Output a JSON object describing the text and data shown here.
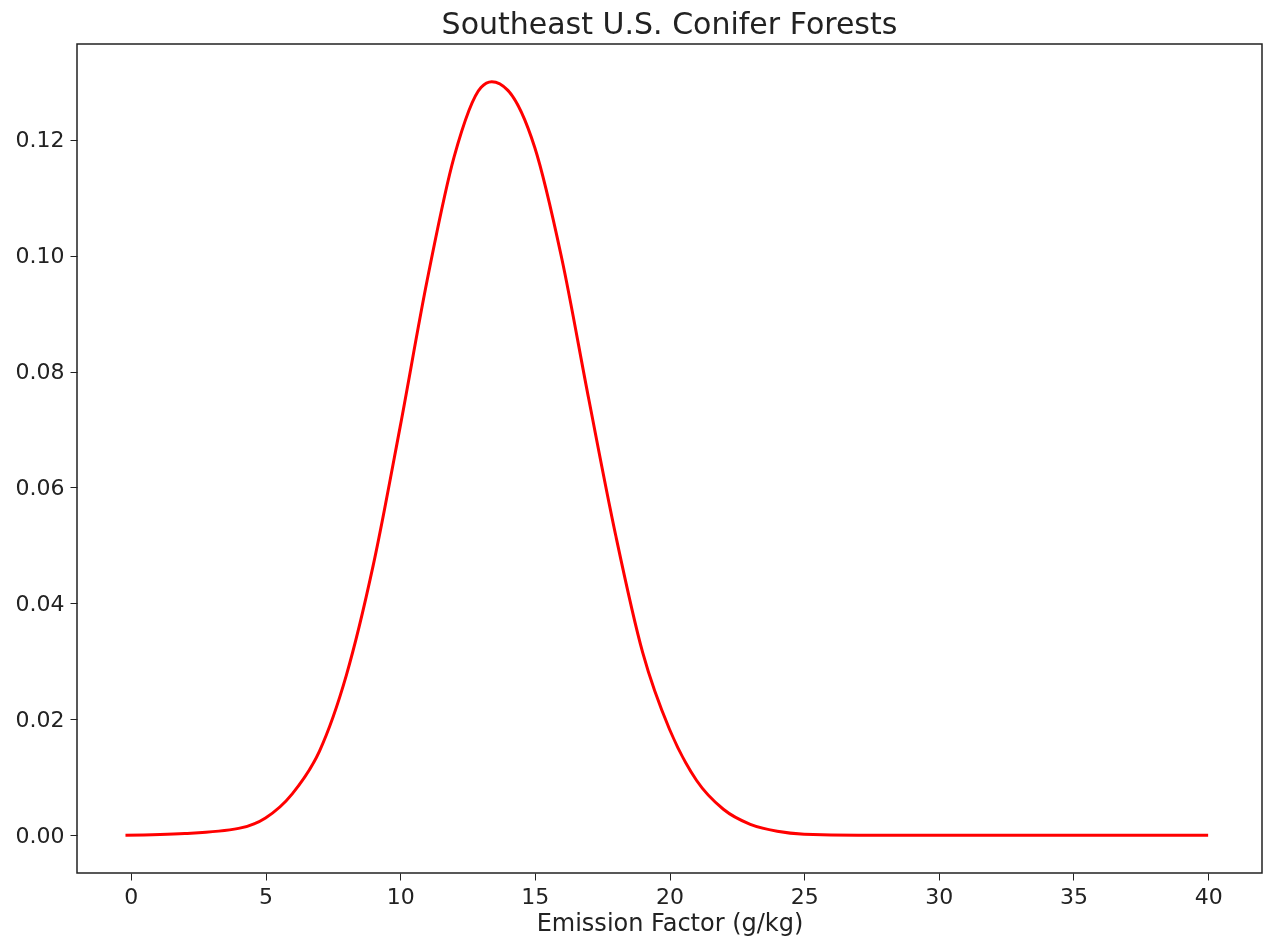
{
  "chart_data": {
    "type": "line",
    "title": "Southeast U.S. Conifer Forests",
    "xlabel": "Emission Factor (g/kg)",
    "x": [
      -0.2,
      2,
      4,
      5,
      6,
      7,
      8,
      9,
      10,
      11,
      12,
      13,
      13.4,
      14,
      15,
      16,
      17,
      18,
      19,
      20,
      21,
      22,
      23,
      24,
      25,
      27,
      30,
      35,
      40
    ],
    "series": [
      {
        "color": "#ff0000",
        "values": [
          0,
          0.0003,
          0.0012,
          0.003,
          0.0072,
          0.0145,
          0.0276,
          0.0466,
          0.0705,
          0.0957,
          0.117,
          0.129,
          0.13,
          0.1285,
          0.1186,
          0.0995,
          0.0753,
          0.0518,
          0.0316,
          0.0183,
          0.0095,
          0.0045,
          0.0019,
          0.0007,
          0.0002,
          0,
          0,
          0,
          0
        ]
      }
    ],
    "xlim": [
      -2,
      42
    ],
    "xticks": [
      0,
      5,
      10,
      15,
      20,
      25,
      30,
      35,
      40
    ],
    "ylim": [
      -0.0065,
      0.1365
    ],
    "yticks": [
      {
        "value": 0,
        "label": "0.00"
      },
      {
        "value": 0.02,
        "label": "0.02"
      },
      {
        "value": 0.04,
        "label": "0.04"
      },
      {
        "value": 0.06,
        "label": "0.06"
      },
      {
        "value": 0.08,
        "label": "0.08"
      },
      {
        "value": 0.1,
        "label": "0.10"
      },
      {
        "value": 0.12,
        "label": "0.12"
      }
    ],
    "grid": false,
    "marker": "none",
    "line_style": "solid"
  }
}
